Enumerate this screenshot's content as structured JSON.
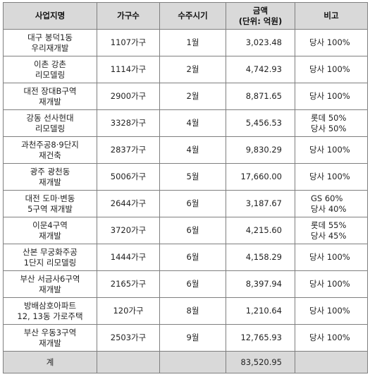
{
  "headers": {
    "name": "사업지명",
    "households": "가구수",
    "period": "수주시기",
    "amount_line1": "금액",
    "amount_line2": "(단위: 억원)",
    "note": "비고"
  },
  "rows": [
    {
      "name": [
        "대구 봉덕1동",
        "우리재개발"
      ],
      "households": "1107가구",
      "period": "1월",
      "amount": "3,023.48",
      "note": [
        "당사 100%"
      ]
    },
    {
      "name": [
        "이촌 강촌",
        "리모델링"
      ],
      "households": "1114가구",
      "period": "2월",
      "amount": "4,742.93",
      "note": [
        "당사 100%"
      ]
    },
    {
      "name": [
        "대전 장대B구역",
        "재개발"
      ],
      "households": "2900가구",
      "period": "2월",
      "amount": "8,871.65",
      "note": [
        "당사 100%"
      ]
    },
    {
      "name": [
        "강동 선사현대",
        "리모델링"
      ],
      "households": "3328가구",
      "period": "4월",
      "amount": "5,456.53",
      "note": [
        "롯데 50%",
        "당사 50%"
      ]
    },
    {
      "name": [
        "과천주공8·9단지",
        "재건축"
      ],
      "households": "2837가구",
      "period": "4월",
      "amount": "9,830.29",
      "note": [
        "당사 100%"
      ]
    },
    {
      "name": [
        "광주 광천동",
        "재개발"
      ],
      "households": "5006가구",
      "period": "5월",
      "amount": "17,660.00",
      "note": [
        "당사 100%"
      ]
    },
    {
      "name": [
        "대전 도마·변동",
        "5구역 재개발"
      ],
      "households": "2644가구",
      "period": "6월",
      "amount": "3,187.67",
      "note": [
        "GS 60%",
        "당사 40%"
      ]
    },
    {
      "name": [
        "이문4구역",
        "재개발"
      ],
      "households": "3720가구",
      "period": "6월",
      "amount": "4,215.60",
      "note": [
        "롯데 55%",
        "당사 45%"
      ]
    },
    {
      "name": [
        "산본 무궁화주공",
        "1단지 리모델링"
      ],
      "households": "1444가구",
      "period": "6월",
      "amount": "4,158.29",
      "note": [
        "당사 100%"
      ]
    },
    {
      "name": [
        "부산 서금사6구역",
        "재개발"
      ],
      "households": "2165가구",
      "period": "6월",
      "amount": "8,397.94",
      "note": [
        "당사 100%"
      ]
    },
    {
      "name": [
        "방배삼호아파트",
        "12, 13동 가로주택"
      ],
      "households": "120가구",
      "period": "8월",
      "amount": "1,210.64",
      "note": [
        "당사 100%"
      ]
    },
    {
      "name": [
        "부산 우동3구역",
        "재개발"
      ],
      "households": "2503가구",
      "period": "9월",
      "amount": "12,765.93",
      "note": [
        "당사 100%"
      ]
    }
  ],
  "total": {
    "label": "계",
    "amount": "83,520.95"
  }
}
